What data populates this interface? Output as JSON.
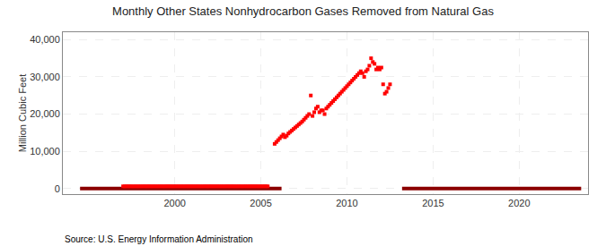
{
  "chart_data": {
    "type": "scatter",
    "title": "Monthly Other States Nonhydrocarbon Gases Removed from Natural Gas",
    "ylabel": "Million Cubic Feet",
    "annotations": [
      "Source: U.S. Energy Information Administration"
    ],
    "grid": true,
    "xlim": [
      1993.5,
      2024
    ],
    "ylim": [
      -1500,
      42000
    ],
    "xticks": [
      2000,
      2005,
      2010,
      2015,
      2020
    ],
    "yticks": [
      0,
      {
        "value": 10000,
        "label": "10,000"
      },
      {
        "value": 20000,
        "label": "20,000"
      },
      {
        "value": 30000,
        "label": "30,000"
      },
      {
        "value": 40000,
        "label": "40,000"
      }
    ],
    "series": [
      {
        "type": "line",
        "color": "#8b0000",
        "x": [
          1994.5,
          2006.2
        ],
        "values": [
          0,
          0
        ]
      },
      {
        "type": "line",
        "color": "#8b0000",
        "x": [
          2013.2,
          2023.6
        ],
        "values": [
          0,
          0
        ]
      },
      {
        "type": "scatter",
        "color": "#ff0000",
        "marker": "square",
        "x": [
          1997.0,
          1997.1,
          1997.2,
          1997.3,
          1997.4,
          1997.5,
          1997.6,
          1997.7,
          1997.8,
          1997.9,
          1998.0,
          1998.1,
          1998.2,
          1998.3,
          1998.4,
          1998.5,
          1998.6,
          1998.7,
          1998.8,
          1998.9,
          1999.0,
          1999.1,
          1999.2,
          1999.3,
          1999.4,
          1999.5,
          1999.6,
          1999.7,
          1999.8,
          1999.9,
          2000.0,
          2000.1,
          2000.2,
          2000.3,
          2000.4,
          2000.5,
          2000.6,
          2000.7,
          2000.8,
          2000.9,
          2001.0,
          2001.1,
          2001.2,
          2001.3,
          2001.4,
          2001.5,
          2001.6,
          2001.7,
          2001.8,
          2001.9,
          2002.0,
          2002.1,
          2002.2,
          2002.3,
          2002.4,
          2002.5,
          2002.6,
          2002.7,
          2002.8,
          2002.9,
          2003.0,
          2003.1,
          2003.2,
          2003.3,
          2003.4,
          2003.5,
          2003.6,
          2003.7,
          2003.8,
          2003.9,
          2004.0,
          2004.1,
          2004.2,
          2004.3,
          2004.4,
          2004.5,
          2004.6,
          2004.7,
          2004.8,
          2004.9,
          2005.0,
          2005.1,
          2005.2,
          2005.3,
          2005.4,
          2005.8,
          2005.9,
          2006.0,
          2006.1,
          2006.2,
          2006.3,
          2006.4,
          2006.5,
          2006.6,
          2006.7,
          2006.8,
          2006.9,
          2007.0,
          2007.1,
          2007.2,
          2007.3,
          2007.4,
          2007.5,
          2007.6,
          2007.7,
          2007.8,
          2007.9,
          2008.0,
          2008.1,
          2008.2,
          2008.3,
          2008.4,
          2008.5,
          2008.6,
          2008.7,
          2008.8,
          2008.9,
          2009.0,
          2009.1,
          2009.2,
          2009.3,
          2009.4,
          2009.5,
          2009.6,
          2009.7,
          2009.8,
          2009.9,
          2010.0,
          2010.1,
          2010.2,
          2010.3,
          2010.4,
          2010.5,
          2010.6,
          2010.7,
          2010.8,
          2010.9,
          2011.0,
          2011.1,
          2011.2,
          2011.3,
          2011.4,
          2011.5,
          2011.6,
          2011.7,
          2011.8,
          2011.9,
          2012.0,
          2012.1,
          2012.2,
          2012.3,
          2012.4,
          2012.5
        ],
        "values": [
          600,
          580,
          620,
          590,
          610,
          600,
          590,
          605,
          595,
          600,
          605,
          598,
          612,
          595,
          600,
          608,
          602,
          595,
          608,
          595,
          605,
          598,
          612,
          600,
          595,
          608,
          602,
          610,
          598,
          605,
          598,
          610,
          605,
          600,
          612,
          595,
          602,
          608,
          595,
          610,
          600,
          608,
          595,
          612,
          600,
          602,
          598,
          605,
          610,
          595,
          602,
          610,
          598,
          605,
          600,
          612,
          595,
          608,
          602,
          595,
          610,
          605,
          598,
          612,
          600,
          602,
          598,
          605,
          610,
          595,
          602,
          610,
          598,
          605,
          600,
          612,
          595,
          608,
          602,
          595,
          605,
          598,
          612,
          600,
          595,
          12000,
          12500,
          13000,
          13500,
          14000,
          14500,
          13800,
          14200,
          14800,
          15200,
          15600,
          16000,
          16400,
          16800,
          17200,
          17600,
          18000,
          18500,
          19000,
          19500,
          20000,
          25000,
          19500,
          20500,
          21500,
          22000,
          20500,
          21000,
          21000,
          20000,
          21500,
          22000,
          22500,
          23000,
          23500,
          24000,
          24500,
          25000,
          25500,
          26000,
          26500,
          27000,
          27500,
          28000,
          28500,
          29000,
          29500,
          30000,
          30500,
          31000,
          31500,
          31000,
          30000,
          31500,
          32000,
          33000,
          35000,
          34000,
          33500,
          32000,
          32500,
          32000,
          32500,
          28000,
          25500,
          26000,
          27000,
          28000
        ]
      }
    ]
  }
}
